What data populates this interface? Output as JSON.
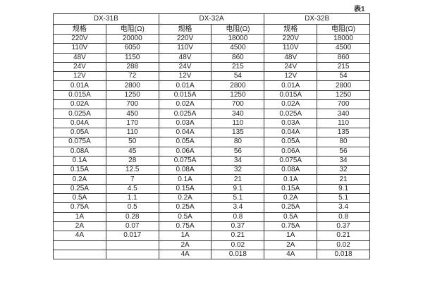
{
  "page": {
    "table_caption": "表1"
  },
  "table": {
    "groups": [
      {
        "name": "DX-31B",
        "spec_header": "规格",
        "res_header": "电阻(Ω)"
      },
      {
        "name": "DX-32A",
        "spec_header": "规格",
        "res_header": "电阻(Ω)"
      },
      {
        "name": "DX-32B",
        "spec_header": "规格",
        "res_header": "电阻(Ω)"
      }
    ],
    "rows": [
      [
        "220V",
        "20000",
        "220V",
        "18000",
        "220V",
        "18000"
      ],
      [
        "110V",
        "6050",
        "110V",
        "4500",
        "110V",
        "4500"
      ],
      [
        "48V",
        "1150",
        "48V",
        "860",
        "48V",
        "860"
      ],
      [
        "24V",
        "288",
        "24V",
        "215",
        "24V",
        "215"
      ],
      [
        "12V",
        "72",
        "12V",
        "54",
        "12V",
        "54"
      ],
      [
        "0.01A",
        "2800",
        "0.01A",
        "2800",
        "0.01A",
        "2800"
      ],
      [
        "0.015A",
        "1250",
        "0.015A",
        "1250",
        "0.015A",
        "1250"
      ],
      [
        "0.02A",
        "700",
        "0.02A",
        "700",
        "0.02A",
        "700"
      ],
      [
        "0.025A",
        "450",
        "0.025A",
        "340",
        "0.025A",
        "340"
      ],
      [
        "0.04A",
        "170",
        "0.03A",
        "110",
        "0.03A",
        "110"
      ],
      [
        "0.05A",
        "110",
        "0.04A",
        "135",
        "0.04A",
        "135"
      ],
      [
        "0.075A",
        "50",
        "0.05A",
        "80",
        "0.05A",
        "80"
      ],
      [
        "0.08A",
        "45",
        "0.06A",
        "56",
        "0.06A",
        "56"
      ],
      [
        "0.1A",
        "28",
        "0.075A",
        "34",
        "0.075A",
        "34"
      ],
      [
        "0.15A",
        "12.5",
        "0.08A",
        "32",
        "0.08A",
        "32"
      ],
      [
        "0.2A",
        "7",
        "0.1A",
        "21",
        "0.1A",
        "21"
      ],
      [
        "0.25A",
        "4.5",
        "0.15A",
        "9.1",
        "0.15A",
        "9.1"
      ],
      [
        "0.5A",
        "1.1",
        "0.2A",
        "5.1",
        "0.2A",
        "5.1"
      ],
      [
        "0.75A",
        "0.5",
        "0.25A",
        "3.4",
        "0.25A",
        "3.4"
      ],
      [
        "1A",
        "0.28",
        "0.5A",
        "0.8",
        "0.5A",
        "0.8"
      ],
      [
        "2A",
        "0.07",
        "0.75A",
        "0.37",
        "0.75A",
        "0.37"
      ],
      [
        "4A",
        "0.017",
        "1A",
        "0.21",
        "1A",
        "0.21"
      ],
      [
        "",
        "",
        "2A",
        "0.02",
        "2A",
        "0.02"
      ],
      [
        "",
        "",
        "4A",
        "0.018",
        "4A",
        "0.018"
      ]
    ]
  }
}
